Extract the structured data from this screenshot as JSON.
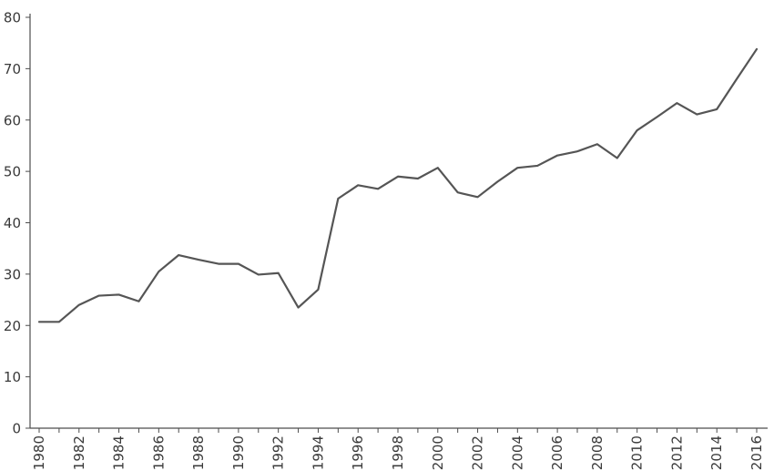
{
  "chart_data": {
    "type": "line",
    "title": "",
    "xlabel": "",
    "ylabel": "",
    "xlim": [
      1980,
      2016
    ],
    "ylim": [
      0,
      80
    ],
    "x_ticks": [
      1980,
      1982,
      1984,
      1986,
      1988,
      1990,
      1992,
      1994,
      1996,
      1998,
      2000,
      2002,
      2004,
      2006,
      2008,
      2010,
      2012,
      2014,
      2016
    ],
    "y_ticks": [
      0,
      10,
      20,
      30,
      40,
      50,
      60,
      70,
      80
    ],
    "grid": false,
    "legend": "none",
    "series": [
      {
        "color": "#555555",
        "x": [
          1980,
          1981,
          1982,
          1983,
          1984,
          1985,
          1986,
          1987,
          1988,
          1989,
          1990,
          1991,
          1992,
          1993,
          1994,
          1995,
          1996,
          1997,
          1998,
          1999,
          2000,
          2001,
          2002,
          2003,
          2004,
          2005,
          2006,
          2007,
          2008,
          2009,
          2010,
          2011,
          2012,
          2013,
          2014,
          2015,
          2016
        ],
        "values": [
          20.7,
          20.7,
          24.0,
          25.8,
          26.0,
          24.7,
          30.5,
          33.7,
          32.8,
          32.0,
          32.0,
          29.9,
          30.2,
          23.5,
          27.0,
          44.7,
          47.3,
          46.6,
          49.0,
          48.6,
          50.7,
          45.9,
          45.0,
          48.0,
          50.7,
          51.1,
          53.1,
          53.9,
          55.3,
          52.6,
          58.0,
          60.6,
          63.3,
          61.1,
          62.1,
          68.0,
          73.8
        ]
      }
    ]
  }
}
